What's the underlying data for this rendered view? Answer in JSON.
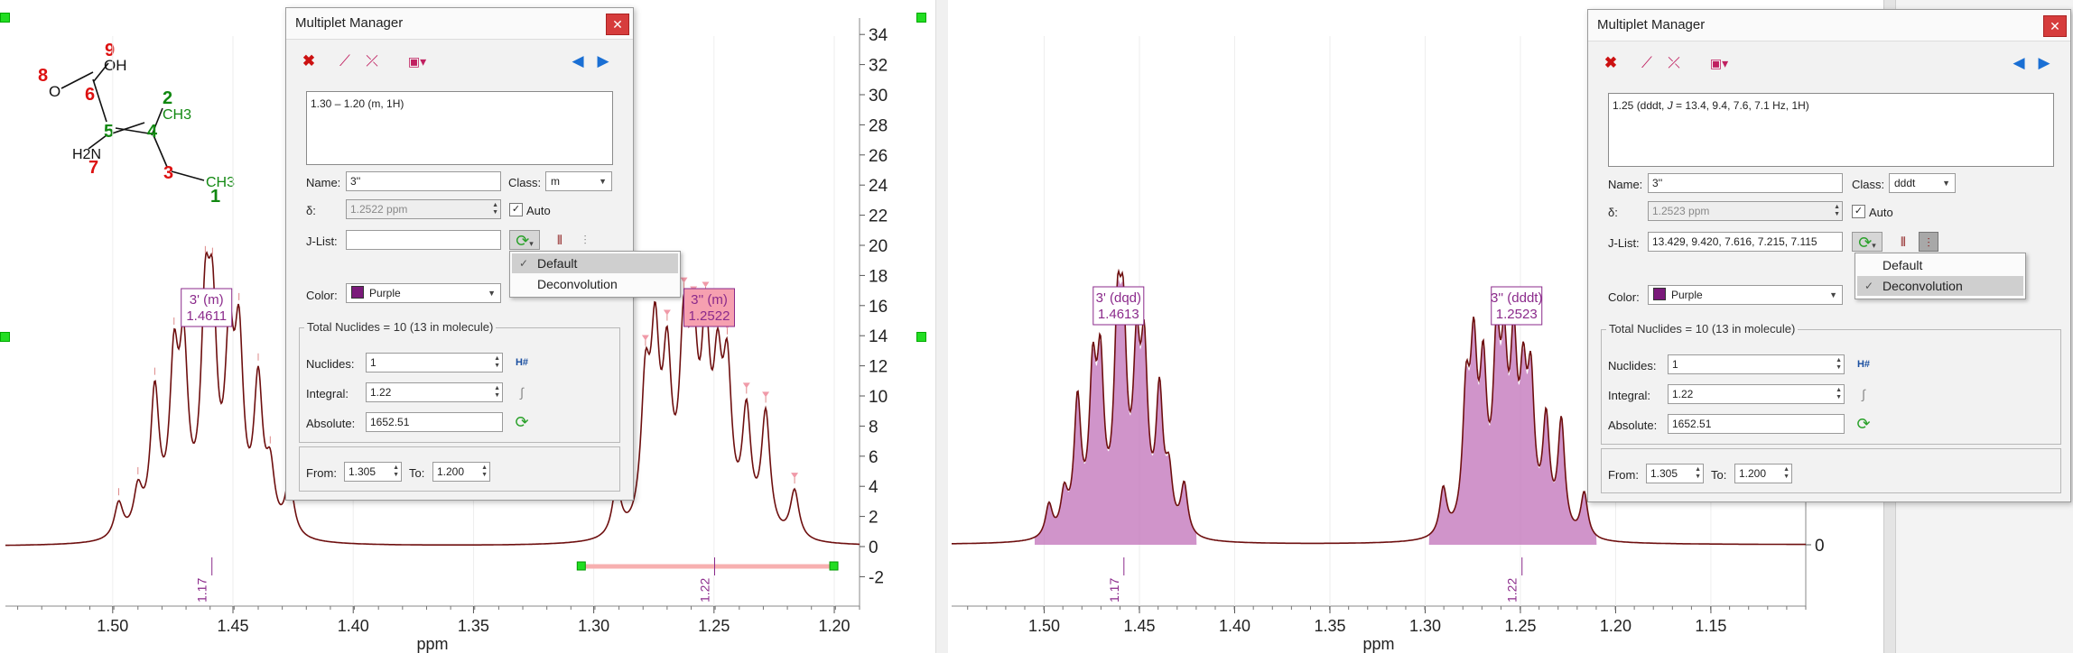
{
  "colors": {
    "spectrum_line": "#6e0f0f",
    "deconv_fill": "#c070b8",
    "multiplet_label": "#8b2a8b",
    "highlight_label_bg": "#f6a0b0",
    "range_bar": "#f7b0b0",
    "peak_marker": "#f09aa8",
    "atom_red": "#dd1111",
    "atom_green": "#118811"
  },
  "left": {
    "xaxis": {
      "title": "ppm",
      "ticks": [
        "1.50",
        "1.45",
        "1.40",
        "1.35",
        "1.30",
        "1.25",
        "1.20"
      ]
    },
    "yaxis": {
      "ticks": [
        "34",
        "32",
        "30",
        "28",
        "26",
        "24",
        "22",
        "20",
        "18",
        "16",
        "14",
        "12",
        "10",
        "8",
        "6",
        "4",
        "2",
        "0",
        "-2"
      ]
    },
    "multiplets": [
      {
        "name": "3' (m)",
        "shift": "1.4611",
        "highlighted": false
      },
      {
        "name": "3'' (m)",
        "shift": "1.2522",
        "highlighted": true
      }
    ],
    "integrals": [
      "1.17",
      "1.22"
    ]
  },
  "right": {
    "xaxis": {
      "title": "ppm",
      "ticks": [
        "1.50",
        "1.45",
        "1.40",
        "1.35",
        "1.30",
        "1.25",
        "1.20",
        "1.15"
      ]
    },
    "yaxis": {
      "ticks": [
        "0"
      ]
    },
    "multiplets": [
      {
        "name": "3' (dqd)",
        "shift": "1.4613"
      },
      {
        "name": "3'' (dddt)",
        "shift": "1.2523"
      }
    ],
    "integrals": [
      "1.17",
      "1.22"
    ]
  },
  "molecule": {
    "atoms": [
      {
        "label": "9"
      },
      {
        "label": "OH"
      },
      {
        "label": "8"
      },
      {
        "label": "O"
      },
      {
        "label": "6"
      },
      {
        "label": "2"
      },
      {
        "label": "CH3"
      },
      {
        "label": "5"
      },
      {
        "label": "4"
      },
      {
        "label": "H2N"
      },
      {
        "label": "7"
      },
      {
        "label": "3"
      },
      {
        "label": "CH3"
      },
      {
        "label": "1"
      }
    ]
  },
  "manager_left": {
    "title": "Multiplet Manager",
    "summary": "1.30 – 1.20 (m, 1H)",
    "name_label": "Name:",
    "name_value": "3''",
    "class_label": "Class:",
    "class_value": "m",
    "delta_label": "δ:",
    "delta_value": "1.2522 ppm",
    "auto_label": "Auto",
    "jlist_label": "J-List:",
    "jlist_value": "",
    "color_label": "Color:",
    "color_value": "Purple",
    "nuclides_group": "Total Nuclides = 10 (13 in molecule)",
    "nuclides_label": "Nuclides:",
    "nuclides_value": "1",
    "integral_label": "Integral:",
    "integral_value": "1.22",
    "absolute_label": "Absolute:",
    "absolute_value": "1652.51",
    "from_label": "From:",
    "from_value": "1.305",
    "to_label": "To:",
    "to_value": "1.200",
    "menu": [
      {
        "label": "Default",
        "checked": true
      },
      {
        "label": "Deconvolution",
        "checked": false
      }
    ]
  },
  "manager_right": {
    "title": "Multiplet Manager",
    "summary_pre": "1.25 (dddt, ",
    "summary_j": "J",
    "summary_post": " = 13.4, 9.4, 7.6, 7.1 Hz, 1H)",
    "name_label": "Name:",
    "name_value": "3''",
    "class_label": "Class:",
    "class_value": "dddt",
    "delta_label": "δ:",
    "delta_value": "1.2523 ppm",
    "auto_label": "Auto",
    "jlist_label": "J-List:",
    "jlist_value": "13.429, 9.420, 7.616, 7.215, 7.115",
    "color_label": "Color:",
    "color_value": "Purple",
    "nuclides_group": "Total Nuclides = 10 (13 in molecule)",
    "nuclides_label": "Nuclides:",
    "nuclides_value": "1",
    "integral_label": "Integral:",
    "integral_value": "1.22",
    "absolute_label": "Absolute:",
    "absolute_value": "1652.51",
    "from_label": "From:",
    "from_value": "1.305",
    "to_label": "To:",
    "to_value": "1.200",
    "menu": [
      {
        "label": "Default",
        "checked": false
      },
      {
        "label": "Deconvolution",
        "checked": true
      }
    ]
  }
}
